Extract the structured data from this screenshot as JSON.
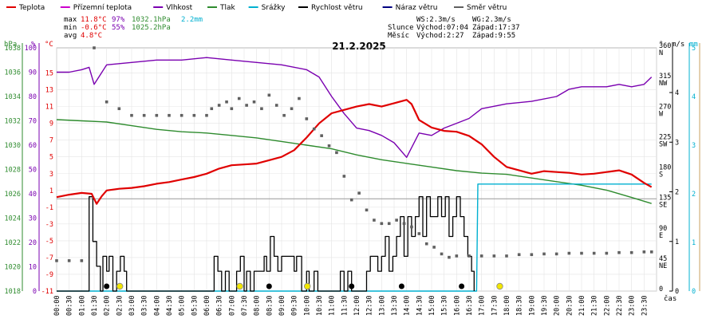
{
  "chart_data": {
    "type": "line",
    "title": "21.2.2025",
    "time_axis_label": "čas",
    "time_ticks": [
      "00:00",
      "00:30",
      "01:00",
      "01:30",
      "02:00",
      "02:30",
      "03:00",
      "03:30",
      "04:00",
      "04:30",
      "05:00",
      "05:30",
      "06:00",
      "06:30",
      "07:00",
      "07:30",
      "08:00",
      "08:30",
      "09:00",
      "09:30",
      "10:00",
      "10:30",
      "11:00",
      "11:30",
      "12:00",
      "12:30",
      "13:00",
      "13:30",
      "14:00",
      "14:30",
      "15:00",
      "15:30",
      "16:00",
      "16:30",
      "17:00",
      "17:30",
      "18:00",
      "18:30",
      "19:00",
      "19:30",
      "20:00",
      "20:30",
      "21:00",
      "21:30",
      "22:00",
      "22:30",
      "23:00",
      "23:30"
    ],
    "legend": [
      {
        "label": "Teplota",
        "color": "#e00000"
      },
      {
        "label": "Přízemní teplota",
        "color": "#cc00cc"
      },
      {
        "label": "Vlhkost",
        "color": "#7a00b0"
      },
      {
        "label": "Tlak",
        "color": "#2e8b2e"
      },
      {
        "label": "Srážky",
        "color": "#00b0d0"
      },
      {
        "label": "Rychlost větru",
        "color": "#000000"
      },
      {
        "label": "Náraz větru",
        "color": "#000080"
      },
      {
        "label": "Směr větru",
        "color": "#606060"
      }
    ],
    "stats": {
      "max_label": "max",
      "max_temp": "11.8°C",
      "max_hum": "97%",
      "max_press": "1032.1hPa",
      "max_rain": "2.2mm",
      "min_label": "min",
      "min_temp": "-0.6°C",
      "min_hum": "55%",
      "min_press": "1025.2hPa",
      "avg_label": "avg",
      "avg_temp": "4.8°C"
    },
    "wind_info": {
      "ws": "WS:2.3m/s",
      "wg": "WG:2.3m/s",
      "sun_label": "Slunce",
      "sunrise": "Východ:07:04",
      "sunset": "Západ:17:37",
      "moon_label": "Měsíc",
      "moonrise": "Východ:2:27",
      "moonset": "Západ:9:55"
    },
    "axes": {
      "pressure": {
        "unit": "hPa",
        "color": "#2e8b2e",
        "ticks": [
          "1038",
          "1036",
          "1034",
          "1032",
          "1030",
          "1028",
          "1026",
          "1024",
          "1022",
          "1020",
          "1018"
        ],
        "range": [
          1018,
          1038
        ]
      },
      "humidity": {
        "unit": "%",
        "color": "#7a00b0",
        "ticks": [
          "100",
          "90",
          "80",
          "70",
          "60",
          "50",
          "40",
          "30",
          "20",
          "10",
          "0"
        ],
        "range": [
          0,
          100
        ]
      },
      "temperature": {
        "unit": "°C",
        "color": "#e00000",
        "ticks": [
          "15",
          "13",
          "11",
          "9",
          "7",
          "5",
          "3",
          "1",
          "-1",
          "-3",
          "-5",
          "-7",
          "-9",
          "-11"
        ],
        "range": [
          -11,
          18
        ]
      },
      "direction": {
        "unit": "°",
        "ticks": [
          "360",
          "315",
          "270",
          "225",
          "180",
          "135",
          "90",
          "45",
          "0"
        ],
        "names": [
          "N",
          "NW",
          "W",
          "SW",
          "S",
          "SE",
          "E",
          "NE",
          ""
        ],
        "range": [
          0,
          360
        ]
      },
      "wind": {
        "unit": "m/s",
        "ticks": [
          "4",
          "3",
          "2",
          "1",
          "0"
        ],
        "range": [
          0,
          4.9
        ]
      },
      "rain": {
        "unit": "mm",
        "color": "#00b0d0",
        "ticks": [
          "5",
          "4",
          "3",
          "2",
          "1",
          "0"
        ],
        "range": [
          0,
          5
        ]
      }
    },
    "series": {
      "temperature_hours": [
        0,
        0.5,
        1,
        1.4,
        1.6,
        1.8,
        2,
        2.5,
        3,
        3.5,
        4,
        4.5,
        5,
        5.5,
        6,
        6.5,
        7,
        7.5,
        8,
        8.5,
        9,
        9.5,
        10,
        10.5,
        11,
        11.5,
        12,
        12.5,
        13,
        13.5,
        14,
        14.2,
        14.5,
        15,
        15.5,
        16,
        16.5,
        17,
        17.5,
        18,
        18.5,
        19,
        19.5,
        20,
        20.5,
        21,
        21.5,
        22,
        22.5,
        23,
        23.5,
        23.8
      ],
      "temperature": [
        0.2,
        0.5,
        0.7,
        0.6,
        -0.6,
        0.3,
        1.0,
        1.2,
        1.3,
        1.5,
        1.8,
        2.0,
        2.3,
        2.6,
        3.0,
        3.6,
        4.0,
        4.1,
        4.2,
        4.6,
        5.0,
        5.8,
        7.3,
        9.0,
        10.2,
        10.6,
        11.0,
        11.3,
        11.0,
        11.4,
        11.8,
        11.3,
        9.4,
        8.5,
        8.1,
        8.0,
        7.5,
        6.5,
        5.0,
        3.8,
        3.4,
        3.0,
        3.3,
        3.2,
        3.1,
        2.9,
        3.0,
        3.2,
        3.4,
        2.9,
        1.9,
        1.4
      ],
      "humidity_hours": [
        0,
        0.5,
        1,
        1.3,
        1.5,
        2,
        3,
        4,
        5,
        6,
        7,
        8,
        9,
        10,
        10.5,
        11,
        11.5,
        12,
        12.5,
        13,
        13.5,
        14,
        14.5,
        15,
        15.5,
        16,
        16.5,
        17,
        18,
        19,
        20,
        20.5,
        21,
        21.5,
        22,
        22.5,
        23,
        23.5,
        23.8
      ],
      "humidity": [
        90,
        90,
        91,
        92,
        85,
        93,
        94,
        95,
        95,
        96,
        95,
        94,
        93,
        91,
        88,
        80,
        73,
        67,
        66,
        64,
        61,
        55,
        65,
        64,
        67,
        69,
        71,
        75,
        77,
        78,
        80,
        83,
        84,
        84,
        84,
        85,
        84,
        85,
        88
      ],
      "pressure_hours": [
        0,
        1,
        2,
        3,
        4,
        5,
        6,
        7,
        8,
        9,
        10,
        11,
        12,
        13,
        14,
        15,
        16,
        17,
        18,
        19,
        20,
        21,
        22,
        23,
        23.8
      ],
      "pressure": [
        1032.1,
        1032.0,
        1031.9,
        1031.6,
        1031.3,
        1031.1,
        1031.0,
        1030.8,
        1030.6,
        1030.3,
        1030.0,
        1029.7,
        1029.2,
        1028.8,
        1028.5,
        1028.2,
        1027.9,
        1027.7,
        1027.6,
        1027.3,
        1027.0,
        1026.7,
        1026.3,
        1025.7,
        1025.2
      ],
      "wind_speed_hours": [
        0,
        1.2,
        1.3,
        1.45,
        1.6,
        1.75,
        1.85,
        2.0,
        2.1,
        2.25,
        2.4,
        2.55,
        2.7,
        2.8,
        2.95,
        6.1,
        6.3,
        6.45,
        6.6,
        6.75,
        6.9,
        7.0,
        7.2,
        7.35,
        7.5,
        7.6,
        7.75,
        7.9,
        8.0,
        8.1,
        8.3,
        8.4,
        8.55,
        8.7,
        8.85,
        9.0,
        9.3,
        9.5,
        9.6,
        9.8,
        10.0,
        10.1,
        10.3,
        10.45,
        10.6,
        10.7,
        10.85,
        11.0,
        11.2,
        11.35,
        11.5,
        11.65,
        11.8,
        11.95,
        12.1,
        12.25,
        12.4,
        12.55,
        12.7,
        12.85,
        13.0,
        13.15,
        13.3,
        13.45,
        13.6,
        13.75,
        13.9,
        14.05,
        14.2,
        14.35,
        14.5,
        14.65,
        14.8,
        14.95,
        15.1,
        15.25,
        15.4,
        15.55,
        15.7,
        15.85,
        16.0,
        16.15,
        16.3,
        16.45,
        16.6,
        16.7
      ],
      "wind_speed": [
        0,
        0,
        1.9,
        1.0,
        0.5,
        0,
        0.7,
        0.4,
        0.7,
        0,
        0.4,
        0.7,
        0.4,
        0,
        0,
        0,
        0.7,
        0.4,
        0,
        0.4,
        0,
        0,
        0.4,
        0.7,
        0,
        0.4,
        0,
        0.4,
        0.4,
        0.4,
        0.7,
        0.4,
        1.1,
        0.7,
        0.4,
        0.7,
        0.7,
        0.4,
        0.7,
        0,
        0.4,
        0,
        0.4,
        0,
        0,
        0,
        0,
        0,
        0,
        0.4,
        0,
        0.4,
        0,
        0,
        0,
        0,
        0.4,
        0.7,
        0.7,
        0.4,
        0.7,
        1.1,
        0.4,
        0.7,
        1.1,
        1.5,
        0.7,
        1.5,
        1.1,
        1.5,
        1.9,
        1.1,
        1.9,
        1.5,
        1.5,
        1.9,
        1.5,
        1.9,
        1.1,
        1.5,
        1.9,
        1.5,
        1.1,
        0.7,
        0.4,
        0
      ],
      "rain_hours": [
        0,
        16.8,
        16.85,
        23.8
      ],
      "rain": [
        0,
        0,
        2.2,
        2.2
      ],
      "wind_dir_hours": [
        0,
        0.5,
        1,
        1.5,
        2,
        2.5,
        3,
        3.5,
        4,
        4.5,
        5,
        5.5,
        6,
        6.2,
        6.5,
        6.8,
        7,
        7.3,
        7.6,
        7.9,
        8.2,
        8.5,
        8.8,
        9.1,
        9.4,
        9.7,
        10,
        10.3,
        10.6,
        10.9,
        11.2,
        11.5,
        11.8,
        12.1,
        12.4,
        12.7,
        13,
        13.3,
        13.6,
        13.9,
        14.2,
        14.5,
        14.8,
        15.1,
        15.4,
        15.7,
        16,
        16.5,
        17,
        17.5,
        18,
        18.5,
        19,
        19.5,
        20,
        20.5,
        21,
        21.5,
        22,
        22.5,
        23,
        23.5,
        23.8
      ],
      "wind_dir": [
        45,
        45,
        45,
        360,
        280,
        270,
        260,
        260,
        260,
        260,
        260,
        260,
        260,
        270,
        275,
        280,
        270,
        285,
        275,
        280,
        270,
        290,
        275,
        260,
        270,
        285,
        255,
        240,
        230,
        215,
        205,
        170,
        135,
        145,
        120,
        105,
        100,
        100,
        105,
        100,
        95,
        85,
        70,
        65,
        55,
        50,
        52,
        52,
        52,
        52,
        52,
        54,
        54,
        55,
        55,
        56,
        56,
        56,
        56,
        57,
        57,
        58,
        58
      ],
      "ground_frost_hours": [
        2.0,
        8.5,
        11.8,
        13.8,
        16.2
      ],
      "moon_event_hours": [
        2.4,
        7.2,
        9.9,
        17.6
      ]
    }
  }
}
